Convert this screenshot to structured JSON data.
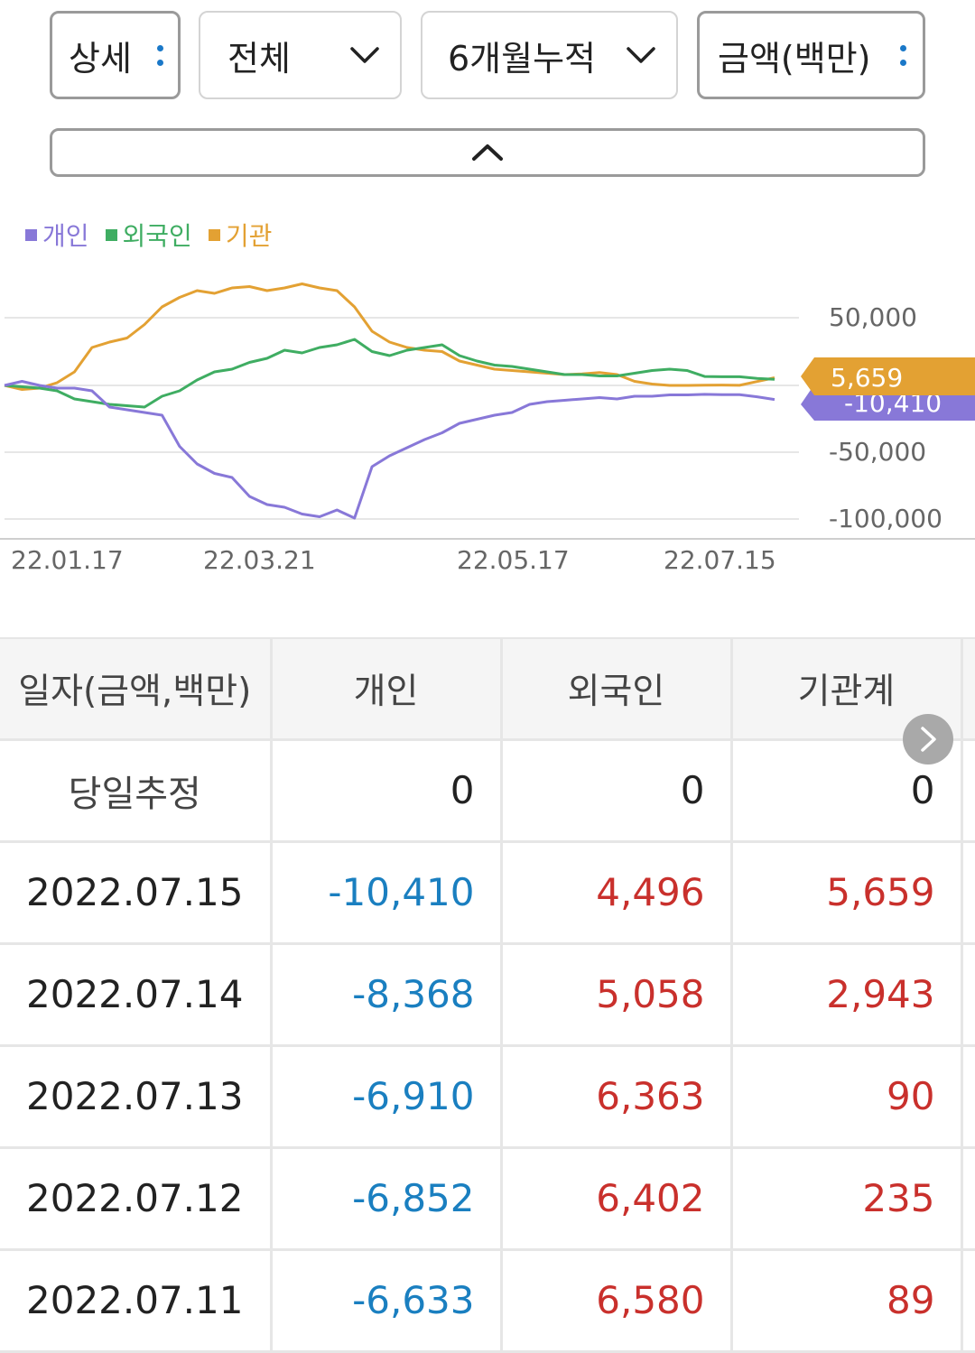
{
  "filters": {
    "detail": "상세",
    "scope": "전체",
    "period": "6개월누적",
    "unit": "금액(백만)"
  },
  "legend": [
    {
      "label": "개인",
      "color": "#8878d8"
    },
    {
      "label": "외국인",
      "color": "#3fad62"
    },
    {
      "label": "기관",
      "color": "#e3a133"
    }
  ],
  "chart_data": {
    "type": "line",
    "x_tick_labels": [
      "22.01.17",
      "22.03.21",
      "22.05.17",
      "22.07.15"
    ],
    "y_tick_labels": [
      "50,000",
      "-50,000",
      "-100,000"
    ],
    "ylim": [
      -100000,
      80000
    ],
    "grid": true,
    "legend_position": "top-left",
    "series": [
      {
        "name": "개인",
        "color": "#8878d8",
        "values": [
          0,
          3000,
          0,
          -2000,
          -2000,
          -4000,
          -16000,
          -18000,
          -20000,
          -22000,
          -45000,
          -58000,
          -65000,
          -68000,
          -82000,
          -88000,
          -90000,
          -95000,
          -97000,
          -92000,
          -98000,
          -60000,
          -52000,
          -46000,
          -40000,
          -35000,
          -28000,
          -25000,
          -22000,
          -20000,
          -14000,
          -12000,
          -11000,
          -10000,
          -9000,
          -10000,
          -8000,
          -8000,
          -7000,
          -7000,
          -6600,
          -6800,
          -6900,
          -8400,
          -10410
        ]
      },
      {
        "name": "외국인",
        "color": "#3fad62",
        "values": [
          0,
          -1000,
          -2000,
          -4000,
          -10000,
          -12000,
          -14000,
          -15000,
          -16000,
          -8000,
          -4000,
          4000,
          10000,
          12000,
          17000,
          20000,
          26000,
          24000,
          28000,
          30000,
          34000,
          25000,
          22000,
          26000,
          28000,
          30000,
          22000,
          18000,
          15000,
          14000,
          12000,
          10000,
          8000,
          8000,
          7000,
          7000,
          9000,
          11000,
          12000,
          11000,
          6600,
          6400,
          6400,
          5100,
          4496
        ]
      },
      {
        "name": "기관",
        "color": "#e3a133",
        "values": [
          0,
          -3000,
          -2000,
          2000,
          10000,
          28000,
          32000,
          35000,
          45000,
          58000,
          65000,
          70000,
          68000,
          72000,
          73000,
          70000,
          72000,
          75000,
          72000,
          70000,
          58000,
          40000,
          32000,
          28000,
          26000,
          25000,
          18000,
          15000,
          12000,
          11000,
          10000,
          9000,
          8000,
          8500,
          9500,
          8000,
          3000,
          1000,
          0,
          0,
          200,
          250,
          90,
          2900,
          5659
        ]
      }
    ],
    "current_labels": [
      {
        "series": "기관",
        "text": "5,659",
        "color": "#e3a133"
      },
      {
        "series": "개인",
        "text": "-10,410",
        "color": "#8878d8"
      }
    ]
  },
  "table": {
    "headers": [
      "일자(금액,백만)",
      "개인",
      "외국인",
      "기관계"
    ],
    "rows": [
      {
        "date": "당일추정",
        "individual": "0",
        "foreign": "0",
        "institution": "0"
      },
      {
        "date": "2022.07.15",
        "individual": "-10,410",
        "foreign": "4,496",
        "institution": "5,659"
      },
      {
        "date": "2022.07.14",
        "individual": "-8,368",
        "foreign": "5,058",
        "institution": "2,943"
      },
      {
        "date": "2022.07.13",
        "individual": "-6,910",
        "foreign": "6,363",
        "institution": "90"
      },
      {
        "date": "2022.07.12",
        "individual": "-6,852",
        "foreign": "6,402",
        "institution": "235"
      },
      {
        "date": "2022.07.11",
        "individual": "-6,633",
        "foreign": "6,580",
        "institution": "89"
      }
    ]
  },
  "icons": {
    "dropdown": "chevron-down-icon",
    "more": "vertical-dots-icon",
    "collapse": "chevron-up-icon",
    "scroll": "chevron-right-icon"
  }
}
